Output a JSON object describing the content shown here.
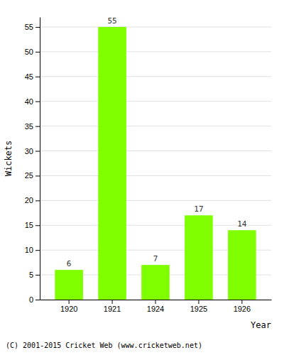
{
  "chart_data": {
    "type": "bar",
    "categories": [
      "1920",
      "1921",
      "1924",
      "1925",
      "1926"
    ],
    "values": [
      6,
      55,
      7,
      17,
      14
    ],
    "color": "#7fff00",
    "xlabel": "Year",
    "ylabel": "Wickets",
    "ylim": [
      0,
      57
    ],
    "yticks": [
      0,
      5,
      10,
      15,
      20,
      25,
      30,
      35,
      40,
      45,
      50,
      55
    ],
    "grid": true,
    "data_labels": true,
    "annotations": [
      "(C) 2001-2015 Cricket Web (www.cricketweb.net)"
    ]
  }
}
